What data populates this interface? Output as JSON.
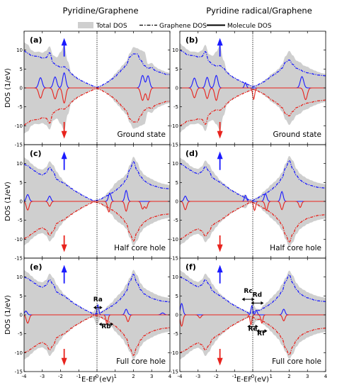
{
  "column_titles": [
    "Pyridine/Graphene",
    "Pyridine radical/Graphene"
  ],
  "legend": {
    "total": "Total DOS",
    "graphene": "Graphene DOS",
    "molecule": "Molecule DOS"
  },
  "colors": {
    "total_fill": "#cfcfcf",
    "spin_up": "#1a1aff",
    "spin_down": "#e8231d",
    "fermi_line": "#000000"
  },
  "chart_data": {
    "type": "area",
    "xlabel": "E-EF (eV)",
    "ylabel": "DOS (1/eV)",
    "xlim": [
      -4,
      4
    ],
    "ylim": [
      -15,
      15
    ],
    "xticks": [
      -4,
      -3,
      -2,
      -1,
      0,
      1,
      2,
      3,
      4
    ],
    "yticks": [
      -15,
      -10,
      -5,
      0,
      5,
      10
    ],
    "panels": [
      {
        "label": "(a)",
        "row": 0,
        "col": 0,
        "state": "Ground state",
        "x": [
          -4,
          -3.8,
          -3.6,
          -3.4,
          -3.2,
          -3,
          -2.8,
          -2.6,
          -2.4,
          -2.2,
          -2,
          -1.8,
          -1.6,
          -1.4,
          -1.2,
          -1,
          -0.8,
          -0.6,
          -0.4,
          -0.2,
          0,
          0.2,
          0.4,
          0.6,
          0.8,
          1,
          1.2,
          1.4,
          1.6,
          1.8,
          2,
          2.2,
          2.4,
          2.6,
          2.8,
          3,
          3.2,
          3.4,
          3.6,
          3.8,
          4
        ],
        "graphene_up": [
          9.8,
          9.2,
          8.6,
          8.4,
          8.3,
          7.9,
          8,
          9.3,
          6.6,
          5.9,
          5.5,
          5.6,
          4.9,
          3.7,
          2.9,
          2.3,
          1.8,
          1.3,
          0.9,
          0.5,
          0.2,
          0.5,
          1,
          1.6,
          2.3,
          3,
          4,
          5,
          6,
          8.2,
          9,
          9,
          7.3,
          5.9,
          5.2,
          5.4,
          4.6,
          4.2,
          3.9,
          3.6,
          3.5
        ],
        "total_up": [
          12,
          11.5,
          10,
          9.5,
          9.6,
          9.3,
          9.8,
          11,
          8.6,
          8.1,
          9.5,
          11.2,
          7,
          4,
          3.2,
          2.4,
          1.9,
          1.3,
          0.9,
          0.5,
          0.2,
          0.6,
          1,
          1.8,
          2.6,
          3.8,
          4.8,
          6,
          7,
          9.2,
          10.8,
          10.5,
          10,
          9.6,
          6.3,
          6.6,
          5.6,
          5,
          4.6,
          4.2,
          4
        ],
        "mol_peaks": [
          {
            "e": -3.1,
            "h": 2.7,
            "w": 0.13
          },
          {
            "e": -2.3,
            "h": 2.9,
            "w": 0.13
          },
          {
            "e": -1.8,
            "h": 4.0,
            "w": 0.12
          },
          {
            "e": 2.5,
            "h": 3.3,
            "w": 0.13
          },
          {
            "e": 2.8,
            "h": 3.2,
            "w": 0.12
          }
        ],
        "mol_peaks_down": [
          {
            "e": -3.1,
            "h": 2.7,
            "w": 0.13
          },
          {
            "e": -2.3,
            "h": 2.9,
            "w": 0.13
          },
          {
            "e": -1.8,
            "h": 4.0,
            "w": 0.12
          },
          {
            "e": 2.5,
            "h": 3.3,
            "w": 0.13
          },
          {
            "e": 2.8,
            "h": 3.2,
            "w": 0.12
          }
        ]
      },
      {
        "label": "(b)",
        "row": 0,
        "col": 1,
        "state": "Ground state",
        "x": [
          -4,
          -3.8,
          -3.6,
          -3.4,
          -3.2,
          -3,
          -2.8,
          -2.6,
          -2.4,
          -2.2,
          -2,
          -1.8,
          -1.6,
          -1.4,
          -1.2,
          -1,
          -0.8,
          -0.6,
          -0.4,
          -0.2,
          0,
          0.2,
          0.4,
          0.6,
          0.8,
          1,
          1.2,
          1.4,
          1.6,
          1.8,
          2,
          2.2,
          2.4,
          2.6,
          2.8,
          3,
          3.2,
          3.4,
          3.6,
          3.8,
          4
        ],
        "graphene_up": [
          10,
          9.5,
          8.8,
          8.6,
          8.5,
          8.2,
          8.3,
          9.6,
          7,
          6.2,
          5.8,
          5.9,
          5.2,
          4,
          3.2,
          2.6,
          2.1,
          1.6,
          1.2,
          0.8,
          0.4,
          0.6,
          1.1,
          1.6,
          2.3,
          3,
          3.6,
          4.3,
          5.2,
          6.8,
          7.4,
          6.2,
          5.2,
          4.8,
          4.3,
          4,
          3.8,
          3.6,
          3.4,
          3.3,
          3.2
        ],
        "total_up": [
          11.8,
          11,
          10.2,
          9.6,
          9.6,
          9.4,
          9.9,
          11.4,
          8.9,
          8.5,
          9.6,
          11.2,
          7.3,
          4.4,
          3.4,
          2.8,
          2.2,
          1.7,
          1.2,
          0.8,
          0.4,
          0.8,
          1.2,
          1.9,
          2.6,
          3.6,
          4.2,
          5,
          6.2,
          8.4,
          9.8,
          8.6,
          7.2,
          6.8,
          5.9,
          5.6,
          5,
          4.6,
          4.2,
          3.9,
          3.7
        ],
        "mol_peaks": [
          {
            "e": -3.2,
            "h": 2.6,
            "w": 0.13
          },
          {
            "e": -2.5,
            "h": 2.8,
            "w": 0.12
          },
          {
            "e": -2.0,
            "h": 3.3,
            "w": 0.12
          },
          {
            "e": -0.4,
            "h": 1.4,
            "w": 0.08
          },
          {
            "e": 2.7,
            "h": 3.0,
            "w": 0.13
          }
        ],
        "mol_peaks_down": [
          {
            "e": -3.2,
            "h": 2.6,
            "w": 0.13
          },
          {
            "e": -2.5,
            "h": 2.8,
            "w": 0.12
          },
          {
            "e": -2.0,
            "h": 3.3,
            "w": 0.12
          },
          {
            "e": 0.05,
            "h": 3.0,
            "w": 0.08
          },
          {
            "e": 2.9,
            "h": 3.1,
            "w": 0.13
          }
        ]
      },
      {
        "label": "(c)",
        "row": 1,
        "col": 0,
        "state": "Half core hole",
        "x": [
          -4,
          -3.8,
          -3.6,
          -3.4,
          -3.2,
          -3,
          -2.8,
          -2.6,
          -2.4,
          -2.2,
          -2,
          -1.8,
          -1.6,
          -1.4,
          -1.2,
          -1,
          -0.8,
          -0.6,
          -0.4,
          -0.2,
          0,
          0.2,
          0.4,
          0.6,
          0.8,
          1,
          1.2,
          1.4,
          1.6,
          1.8,
          2,
          2.2,
          2.4,
          2.6,
          2.8,
          3,
          3.2,
          3.4,
          3.6,
          3.8,
          4
        ],
        "graphene_up": [
          9.8,
          9.4,
          8.7,
          8,
          7.3,
          7,
          7.5,
          9,
          7.8,
          5.8,
          5.2,
          4.8,
          4.1,
          3.4,
          2.7,
          2.2,
          1.6,
          1.1,
          0.6,
          0.2,
          0.3,
          0.6,
          1.1,
          1.6,
          2.2,
          2.8,
          3.6,
          4.5,
          5.8,
          8.4,
          10.5,
          8.2,
          6.5,
          5.4,
          4.8,
          4.3,
          4,
          3.7,
          3.5,
          3.4,
          3.3
        ],
        "total_up": [
          11.6,
          11,
          10,
          9.2,
          8.6,
          8.4,
          9,
          10.6,
          9.6,
          7.8,
          6.4,
          5.2,
          4.4,
          3.6,
          2.9,
          2.4,
          1.8,
          1.2,
          0.7,
          0.2,
          0.4,
          0.7,
          1.4,
          2.4,
          3.4,
          4.8,
          5.6,
          6.2,
          7.2,
          9.6,
          11.8,
          10.4,
          8.2,
          7,
          6.4,
          5.9,
          5.4,
          5,
          4.7,
          4.5,
          4.3
        ],
        "mol_peaks": [
          {
            "e": -3.8,
            "h": 1.8,
            "w": 0.11
          },
          {
            "e": -2.6,
            "h": 1.4,
            "w": 0.1
          },
          {
            "e": 0.7,
            "h": 2.2,
            "w": 0.1
          },
          {
            "e": 1.6,
            "h": 2.9,
            "w": 0.1
          }
        ],
        "mol_peaks_down": [
          {
            "e": -3.8,
            "h": 2.3,
            "w": 0.11
          },
          {
            "e": -2.6,
            "h": 1.3,
            "w": 0.1
          },
          {
            "e": 0.65,
            "h": 2.8,
            "w": 0.1
          },
          {
            "e": 1.6,
            "h": 2.6,
            "w": 0.1
          },
          {
            "e": 2.5,
            "h": 2.0,
            "w": 0.1
          },
          {
            "e": 2.7,
            "h": 1.8,
            "w": 0.1
          }
        ]
      },
      {
        "label": "(d)",
        "row": 1,
        "col": 1,
        "state": "Half core hole",
        "x": [
          -4,
          -3.8,
          -3.6,
          -3.4,
          -3.2,
          -3,
          -2.8,
          -2.6,
          -2.4,
          -2.2,
          -2,
          -1.8,
          -1.6,
          -1.4,
          -1.2,
          -1,
          -0.8,
          -0.6,
          -0.4,
          -0.2,
          0,
          0.2,
          0.4,
          0.6,
          0.8,
          1,
          1.2,
          1.4,
          1.6,
          1.8,
          2,
          2.2,
          2.4,
          2.6,
          2.8,
          3,
          3.2,
          3.4,
          3.6,
          3.8,
          4
        ],
        "graphene_up": [
          10,
          9.5,
          8.8,
          8.2,
          7.6,
          7.3,
          7.8,
          9.2,
          8,
          6.2,
          5.6,
          5.1,
          4.4,
          3.7,
          3,
          2.5,
          1.9,
          1.4,
          0.9,
          0.4,
          0.3,
          0.7,
          1.2,
          1.8,
          2.4,
          3,
          3.8,
          4.8,
          6.2,
          8.8,
          10.8,
          8.6,
          6.8,
          5.6,
          5,
          4.5,
          4.2,
          3.9,
          3.7,
          3.6,
          3.5
        ],
        "total_up": [
          11.5,
          11,
          10.2,
          9.3,
          8.8,
          8.6,
          9.2,
          10.8,
          9.8,
          8,
          6.8,
          5.6,
          4.8,
          4,
          3.2,
          2.7,
          2.1,
          1.6,
          1.8,
          0.6,
          0.4,
          1,
          1.6,
          2.6,
          3.4,
          4.4,
          5.2,
          6.2,
          7.6,
          10,
          12,
          10.8,
          8.6,
          7.3,
          6.6,
          6,
          5.6,
          5.2,
          4.9,
          4.7,
          4.5
        ],
        "mol_peaks": [
          {
            "e": -3.7,
            "h": 1.4,
            "w": 0.1
          },
          {
            "e": -0.4,
            "h": 1.6,
            "w": 0.08
          },
          {
            "e": 0.7,
            "h": 2.0,
            "w": 0.1
          },
          {
            "e": 1.6,
            "h": 2.6,
            "w": 0.1
          }
        ],
        "mol_peaks_down": [
          {
            "e": -3.7,
            "h": 2.2,
            "w": 0.11
          },
          {
            "e": 0.1,
            "h": 2.4,
            "w": 0.08
          },
          {
            "e": 0.75,
            "h": 2.4,
            "w": 0.1
          },
          {
            "e": 1.6,
            "h": 2.2,
            "w": 0.1
          },
          {
            "e": 2.6,
            "h": 1.6,
            "w": 0.1
          }
        ]
      },
      {
        "label": "(e)",
        "row": 2,
        "col": 0,
        "state": "Full core hole",
        "x": [
          -4,
          -3.8,
          -3.6,
          -3.4,
          -3.2,
          -3,
          -2.8,
          -2.6,
          -2.4,
          -2.2,
          -2,
          -1.8,
          -1.6,
          -1.4,
          -1.2,
          -1,
          -0.8,
          -0.6,
          -0.4,
          -0.2,
          0,
          0.2,
          0.4,
          0.6,
          0.8,
          1,
          1.2,
          1.4,
          1.6,
          1.8,
          2,
          2.2,
          2.4,
          2.6,
          2.8,
          3,
          3.2,
          3.4,
          3.6,
          3.8,
          4
        ],
        "graphene_up": [
          10,
          9.6,
          9,
          8.3,
          7.6,
          7.3,
          7.8,
          9.3,
          8,
          6,
          5.4,
          5,
          4.3,
          3.5,
          2.8,
          2.3,
          1.7,
          1.2,
          0.7,
          0.2,
          0.3,
          0.6,
          1.1,
          1.7,
          2.3,
          3,
          3.8,
          4.8,
          6.2,
          8.8,
          10.7,
          8.4,
          6.6,
          5.5,
          4.9,
          4.4,
          4.1,
          3.8,
          3.6,
          3.5,
          3.4
        ],
        "total_up": [
          11.8,
          11.2,
          10.3,
          9.4,
          8.8,
          8.6,
          9.2,
          10.9,
          9.8,
          7.9,
          6.6,
          5.4,
          4.6,
          3.8,
          3,
          2.5,
          1.9,
          1.3,
          0.8,
          0.8,
          2.8,
          0.8,
          1.4,
          2.4,
          3.2,
          4.4,
          5.4,
          6.4,
          8,
          9.8,
          11.9,
          10.5,
          8.3,
          7.1,
          6.5,
          6,
          5.5,
          5.1,
          4.8,
          4.6,
          4.4
        ],
        "mol_peaks": [
          {
            "e": -3.9,
            "h": 1.0,
            "w": 0.1
          },
          {
            "e": 0.05,
            "h": 2.6,
            "w": 0.07
          },
          {
            "e": 1.6,
            "h": 1.5,
            "w": 0.1
          },
          {
            "e": 3.6,
            "h": 0.5,
            "w": 0.12
          }
        ],
        "mol_peaks_down": [
          {
            "e": -3.8,
            "h": 2.2,
            "w": 0.11
          },
          {
            "e": 0.55,
            "h": 2.6,
            "w": 0.08
          },
          {
            "e": 1.7,
            "h": 1.8,
            "w": 0.1
          }
        ],
        "annotations": [
          {
            "text": "Ra",
            "x": 0.05,
            "y": 3.6,
            "arrow_from": -0.2,
            "arrow_to": 0.3
          },
          {
            "text": "Rb",
            "x": 0.5,
            "y": -3.6,
            "arrow_from": 0.1,
            "arrow_to": 0.9
          }
        ]
      },
      {
        "label": "(f)",
        "row": 2,
        "col": 1,
        "state": "Full core hole",
        "x": [
          -4,
          -3.8,
          -3.6,
          -3.4,
          -3.2,
          -3,
          -2.8,
          -2.6,
          -2.4,
          -2.2,
          -2,
          -1.8,
          -1.6,
          -1.4,
          -1.2,
          -1,
          -0.8,
          -0.6,
          -0.4,
          -0.2,
          0,
          0.2,
          0.4,
          0.6,
          0.8,
          1,
          1.2,
          1.4,
          1.6,
          1.8,
          2,
          2.2,
          2.4,
          2.6,
          2.8,
          3,
          3.2,
          3.4,
          3.6,
          3.8,
          4
        ],
        "graphene_up": [
          10,
          9.6,
          9.1,
          8.4,
          7.8,
          7.4,
          7.9,
          9.3,
          8.1,
          6.3,
          5.6,
          5.1,
          4.4,
          3.7,
          3,
          2.5,
          1.9,
          1.4,
          0.9,
          0.4,
          0.6,
          1.2,
          1.2,
          1.8,
          2.4,
          3,
          3.8,
          4.8,
          6.2,
          8.8,
          10.6,
          8.4,
          6.7,
          5.6,
          5,
          4.5,
          4.2,
          3.9,
          3.7,
          3.6,
          3.5
        ],
        "total_up": [
          11.8,
          11.2,
          10.4,
          9.6,
          9,
          8.7,
          9.3,
          10.9,
          9.8,
          8.1,
          6.8,
          5.6,
          4.8,
          4,
          3.2,
          2.7,
          2.1,
          1.6,
          1.1,
          0.8,
          3,
          1.6,
          1.5,
          2.6,
          3.4,
          4.4,
          5.4,
          6.4,
          8,
          9.8,
          11.7,
          10.4,
          8.4,
          7.2,
          6.6,
          6,
          5.6,
          5.2,
          4.9,
          4.7,
          4.5
        ],
        "mol_peaks": [
          {
            "e": -3.9,
            "h": 3.0,
            "w": 0.1
          },
          {
            "e": -0.05,
            "h": 2.4,
            "w": 0.07
          },
          {
            "e": 0.2,
            "h": 1.2,
            "w": 0.07
          },
          {
            "e": 1.7,
            "h": 1.5,
            "w": 0.1
          }
        ],
        "mol_peaks_down": [
          {
            "e": -3.9,
            "h": 3.0,
            "w": 0.1
          },
          {
            "e": -2.9,
            "h": 0.8,
            "w": 0.1
          },
          {
            "e": -0.1,
            "h": 2.6,
            "w": 0.07
          },
          {
            "e": 0.5,
            "h": 2.2,
            "w": 0.08
          },
          {
            "e": 1.7,
            "h": 1.6,
            "w": 0.1
          }
        ],
        "annotations": [
          {
            "text": "Rc",
            "x": -0.25,
            "y": 5.8,
            "arrow_from": -0.6,
            "arrow_to": 0.1
          },
          {
            "text": "Rd",
            "x": 0.25,
            "y": 4.8,
            "arrow_from": -0.1,
            "arrow_to": 0.6
          },
          {
            "text": "Re",
            "x": 0.0,
            "y": -4.2,
            "arrow_from": -0.3,
            "arrow_to": 0.3
          },
          {
            "text": "Rf",
            "x": 0.45,
            "y": -5.4,
            "arrow_from": 0.2,
            "arrow_to": 0.8
          }
        ]
      }
    ]
  }
}
